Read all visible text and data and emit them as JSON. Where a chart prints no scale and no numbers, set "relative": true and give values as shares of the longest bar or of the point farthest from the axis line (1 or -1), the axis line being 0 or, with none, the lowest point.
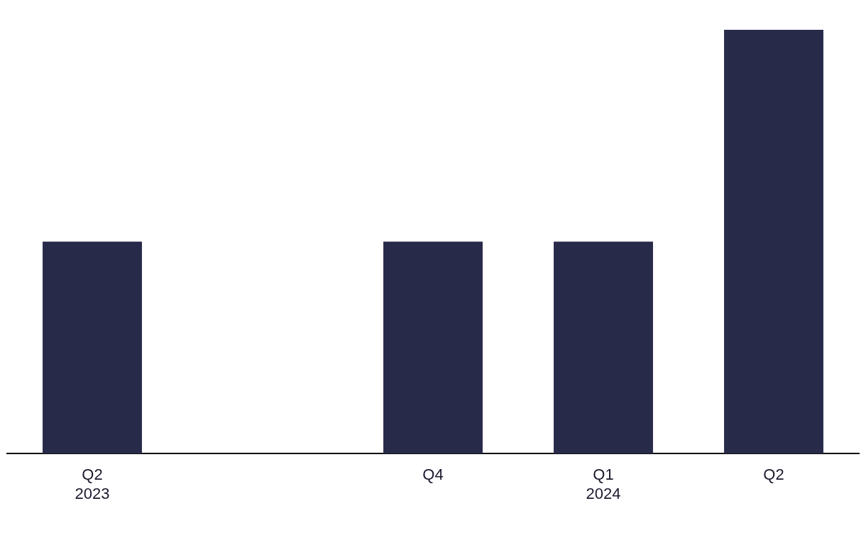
{
  "chart_data": {
    "type": "bar",
    "relative": true,
    "categories": [
      "Q2\n2023",
      null,
      "Q4",
      "Q1\n2024",
      "Q2"
    ],
    "values": [
      0.5,
      null,
      0.5,
      0.5,
      1
    ],
    "color": "#282a4a",
    "grid": false,
    "legend": false
  }
}
